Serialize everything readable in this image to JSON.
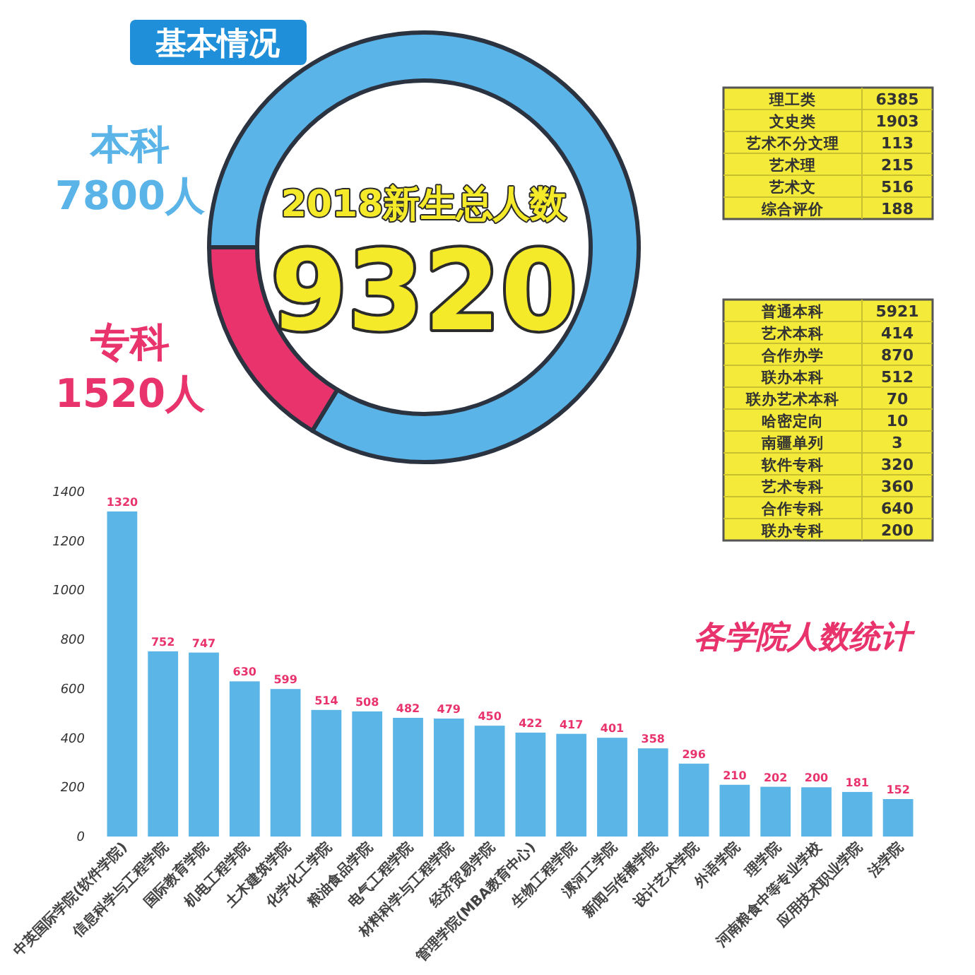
{
  "chart_data": [
    {
      "type": "donut",
      "title": "基本情况",
      "categories": [
        "本科",
        "专科"
      ],
      "values": [
        7800,
        1520
      ],
      "value_labels": [
        "7800人",
        "1520人"
      ],
      "colors": [
        "#5ab4e8",
        "#e8336d"
      ],
      "annotations": [
        "2018新生总人数",
        "9320"
      ]
    },
    {
      "type": "other",
      "categories": [
        "理工类",
        "文史类",
        "艺术不分文理",
        "艺术理",
        "艺术文",
        "综合评价"
      ],
      "values": [
        6385,
        1903,
        113,
        215,
        516,
        188
      ],
      "data_labels": true
    },
    {
      "type": "other",
      "categories": [
        "普通本科",
        "艺术本科",
        "合作办学",
        "联办本科",
        "联办艺术本科",
        "哈密定向",
        "南疆单列",
        "软件专科",
        "艺术专科",
        "合作专科",
        "联办专科"
      ],
      "values": [
        5921,
        414,
        870,
        512,
        70,
        10,
        3,
        320,
        360,
        640,
        200
      ],
      "data_labels": true
    },
    {
      "type": "bar",
      "title": "各学院人数统计",
      "categories": [
        "中英国际学院(软件学院)",
        "信息科学与工程学院",
        "国际教育学院",
        "机电工程学院",
        "土木建筑学院",
        "化学化工学院",
        "粮油食品学院",
        "电气工程学院",
        "材料科学与工程学院",
        "经济贸易学院",
        "管理学院(MBA教育中心)",
        "生物工程学院",
        "漯河工学院",
        "新闻与传播学院",
        "设计艺术学院",
        "外语学院",
        "理学院",
        "河南粮食中等专业学校",
        "应用技术职业学院",
        "法学院"
      ],
      "values": [
        1320,
        752,
        747,
        630,
        599,
        514,
        508,
        482,
        479,
        450,
        422,
        417,
        401,
        358,
        296,
        210,
        202,
        200,
        181,
        152
      ],
      "color": "#5bb5e6",
      "ylim": [
        0,
        1400
      ],
      "yticks": [
        0,
        200,
        400,
        600,
        800,
        1000,
        1200,
        1400
      ],
      "data_labels": true,
      "grid": false
    }
  ]
}
